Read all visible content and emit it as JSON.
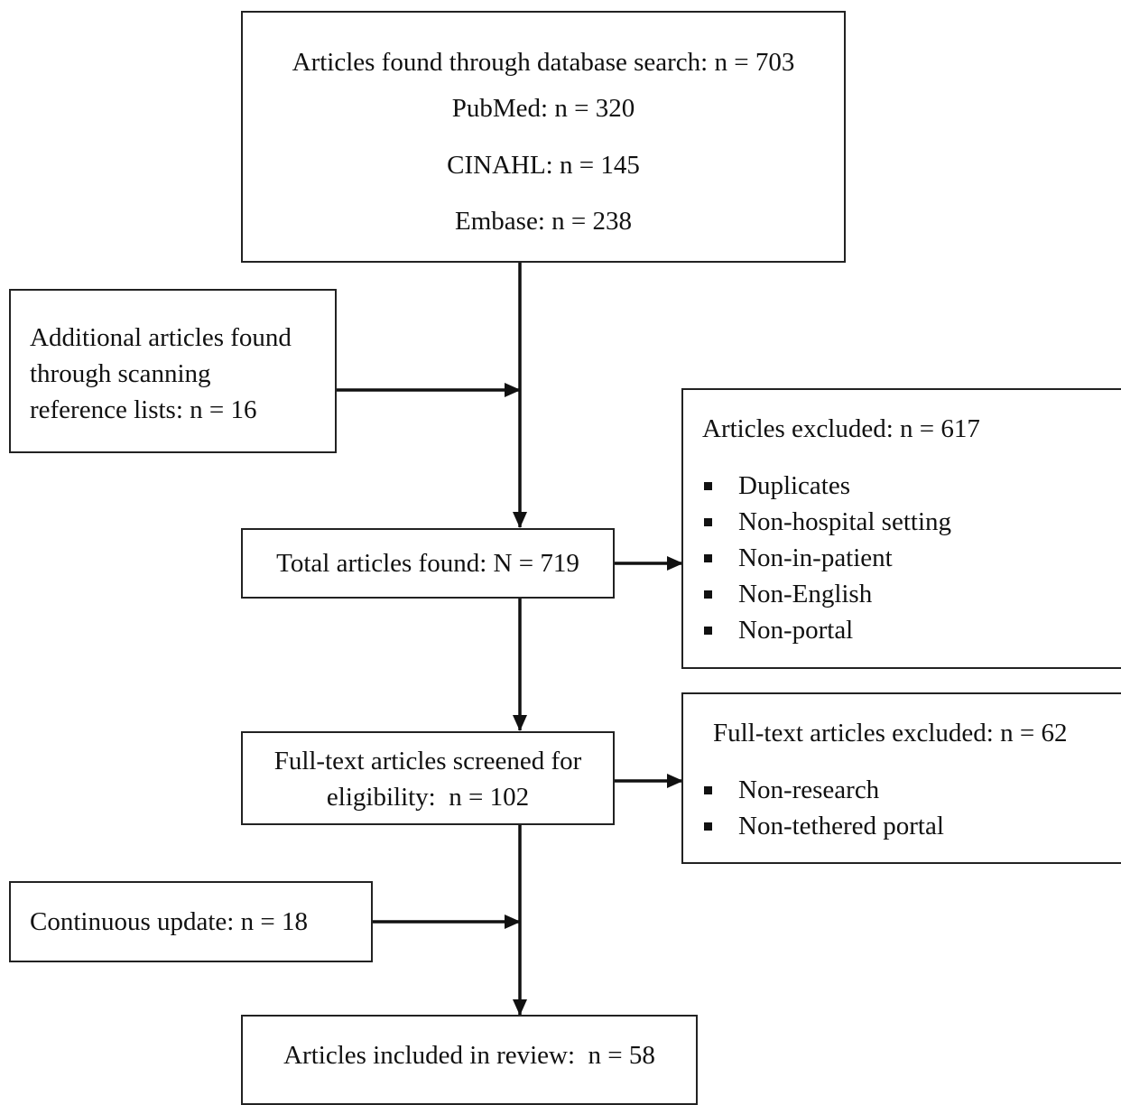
{
  "search": {
    "title": "Articles found through database search: n = 703",
    "pubmed": "PubMed: n = 320",
    "cinahl": "CINAHL: n = 145",
    "embase": "Embase: n = 238"
  },
  "additional": {
    "line1": "Additional articles found",
    "line2": "through scanning",
    "line3": "reference lists: n = 16"
  },
  "total": {
    "label": "Total articles found: N = 719"
  },
  "excluded": {
    "title": "Articles excluded: n = 617",
    "items": [
      "Duplicates",
      "Non-hospital setting",
      "Non-in-patient",
      "Non-English",
      "Non-portal"
    ]
  },
  "screened": {
    "line1": "Full-text articles screened for",
    "line2": "eligibility:  n = 102"
  },
  "fulltext_excluded": {
    "title": "Full-text articles excluded: n = 62",
    "items": [
      "Non-research",
      "Non-tethered portal"
    ]
  },
  "update": {
    "label": "Continuous update: n = 18"
  },
  "included": {
    "label": "Articles included in review:  n = 58"
  },
  "colors": {
    "stroke": "#222222",
    "text": "#111111",
    "background": "#ffffff"
  }
}
